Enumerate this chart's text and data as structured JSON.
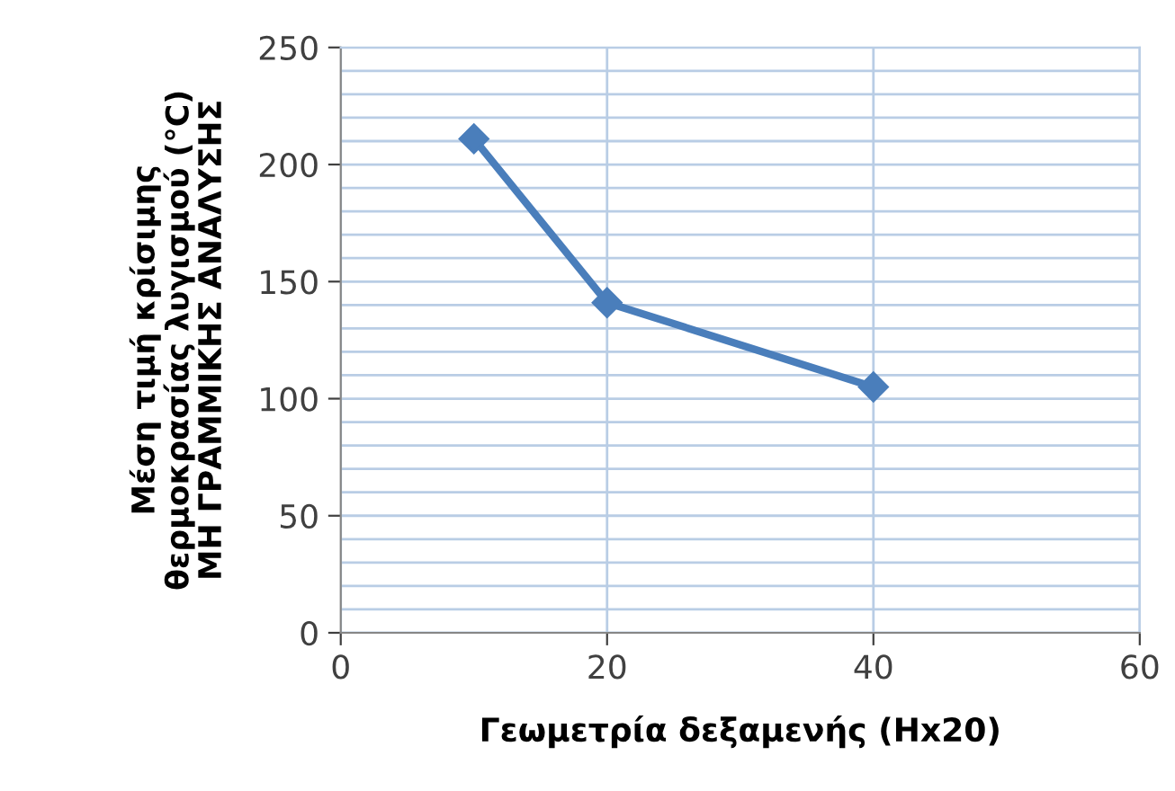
{
  "chart_data": {
    "type": "line",
    "xlabel": "Γεωμετρία δεξαμενής (Hx20)",
    "ylabel": "Μέση τιμή κρίσιμης\nθερμοκρασίας λυγισμού (°C)\nΜΗ ΓΡΑΜΜΙΚΗΣ ΑΝΑΛΥΣΗΣ",
    "x": [
      10,
      20,
      40
    ],
    "series": [
      {
        "color": "#4a7ebb",
        "values": [
          211,
          141,
          105
        ]
      }
    ],
    "marker": "diamond",
    "line_style": "solid",
    "xlim": [
      0,
      60
    ],
    "xticks": [
      0,
      20,
      40,
      60
    ],
    "ylim": [
      0,
      250
    ],
    "yticks": [
      0,
      {
        "value": 10,
        "label": null
      },
      {
        "value": 20,
        "label": null
      },
      {
        "value": 30,
        "label": null
      },
      {
        "value": 40,
        "label": null
      },
      50,
      {
        "value": 60,
        "label": null
      },
      {
        "value": 70,
        "label": null
      },
      {
        "value": 80,
        "label": null
      },
      {
        "value": 90,
        "label": null
      },
      100,
      {
        "value": 110,
        "label": null
      },
      {
        "value": 120,
        "label": null
      },
      {
        "value": 130,
        "label": null
      },
      {
        "value": 140,
        "label": null
      },
      150,
      {
        "value": 160,
        "label": null
      },
      {
        "value": 170,
        "label": null
      },
      {
        "value": 180,
        "label": null
      },
      {
        "value": 190,
        "label": null
      },
      200,
      {
        "value": 210,
        "label": null
      },
      {
        "value": 220,
        "label": null
      },
      {
        "value": 230,
        "label": null
      },
      {
        "value": 240,
        "label": null
      },
      250
    ],
    "grid": true
  }
}
